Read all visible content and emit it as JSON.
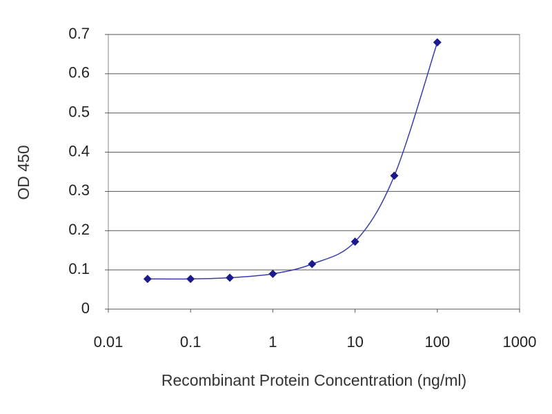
{
  "chart_data": {
    "type": "line",
    "x_label": "Recombinant Protein Concentration (ng/ml)",
    "y_label": "OD 450",
    "x": [
      0.03,
      0.1,
      0.3,
      1,
      3,
      10,
      30,
      100
    ],
    "values": [
      0.077,
      0.077,
      0.08,
      0.09,
      0.115,
      0.172,
      0.34,
      0.68
    ],
    "color": "#1a1a8c",
    "line_color": "#3a3ab0",
    "xscale": "log",
    "xlim": [
      0.01,
      1000
    ],
    "xticks": [
      0.01,
      0.1,
      1,
      10,
      100,
      1000
    ],
    "ylim": [
      0,
      0.7
    ],
    "yticks": [
      0,
      0.1,
      0.2,
      0.3,
      0.4,
      0.5,
      0.6,
      0.7
    ],
    "grid": true
  }
}
